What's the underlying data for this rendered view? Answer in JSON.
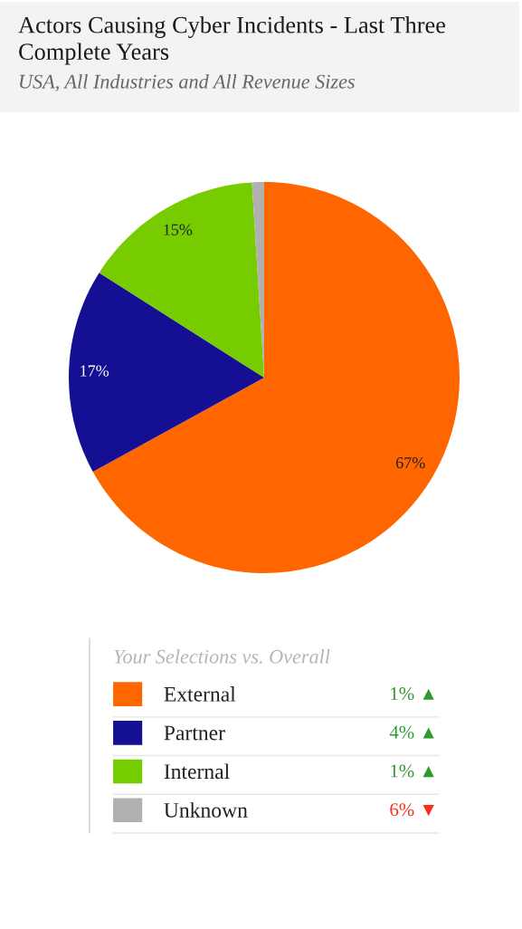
{
  "chart_data": {
    "type": "pie",
    "title": "Actors Causing Cyber Incidents - Last Three Complete Years",
    "subtitle": "USA, All Industries and All Revenue Sizes",
    "categories": [
      "External",
      "Partner",
      "Internal",
      "Unknown"
    ],
    "values": [
      67,
      17,
      15,
      1
    ],
    "colors": [
      "#ff6600",
      "#151093",
      "#77cc00",
      "#b0b0b0"
    ],
    "value_labels": [
      "67%",
      "17%",
      "15%",
      null
    ],
    "legend": "bottom",
    "legend_title": "Your Selections vs. Overall",
    "annotations": [
      "1% ▲",
      "4% ▲",
      "1% ▲",
      "6% ▼"
    ]
  }
}
